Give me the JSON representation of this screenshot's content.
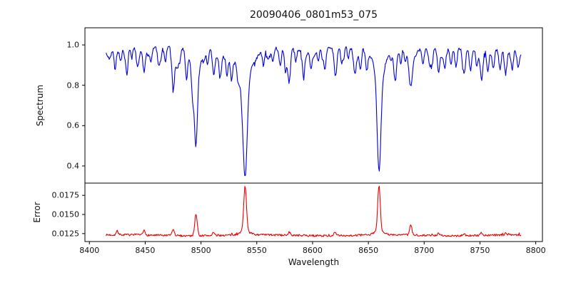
{
  "figure": {
    "title": "20090406_0801m53_075",
    "background": "#ffffff",
    "text_color": "#111111",
    "spine_color": "#000000"
  },
  "chart_data": {
    "type": "line",
    "title": "20090406_0801m53_075",
    "xlabel": "Wavelength",
    "xlim": [
      8396,
      8806
    ],
    "xticks": [
      8400,
      8450,
      8500,
      8550,
      8600,
      8650,
      8700,
      8750,
      8800
    ],
    "x_data_range": [
      8415,
      8787
    ],
    "sample_step": 0.55,
    "grid": false,
    "legend": "none",
    "panels": [
      {
        "name": "spectrum",
        "ylabel": "Spectrum",
        "line_color": "#0000dd",
        "ylim": [
          0.315,
          1.085
        ],
        "yticks": [
          0.4,
          0.6,
          0.8,
          1.0
        ],
        "ytick_labels": [
          "0.4",
          "0.6",
          "0.8",
          "1.0"
        ],
        "continuum_level": 0.983,
        "continuum_wave": [
          {
            "amp": 0.008,
            "period": 190,
            "phase": 0
          },
          {
            "amp": 0.005,
            "period": 83,
            "phase": 1.7
          }
        ],
        "major_absorption_lines": [
          {
            "c": 8495.5,
            "d": 0.38,
            "s": 1.35,
            "wd": 0.098,
            "ws": 5,
            "core_value": 0.505
          },
          {
            "c": 8539.5,
            "d": 0.5,
            "s": 1.9,
            "wd": 0.125,
            "ws": 7,
            "core_value": 0.358
          },
          {
            "c": 8659.5,
            "d": 0.47,
            "s": 1.7,
            "wd": 0.12,
            "ws": 6,
            "core_value": 0.392
          },
          {
            "c": 8688.0,
            "d": 0.185,
            "s": 1.7,
            "core_value": 0.785
          }
        ],
        "minor_absorption_lines": [
          [
            8423,
            0.1,
            1.0
          ],
          [
            8428,
            0.05,
            0.8
          ],
          [
            8433.5,
            0.075,
            0.9
          ],
          [
            8438,
            0.05,
            0.8
          ],
          [
            8443,
            0.06,
            0.9
          ],
          [
            8449,
            0.125,
            1.1
          ],
          [
            8455,
            0.065,
            0.9
          ],
          [
            8462,
            0.085,
            1.0
          ],
          [
            8468,
            0.08,
            0.9
          ],
          [
            8475,
            0.185,
            1.2
          ],
          [
            8481,
            0.06,
            0.9
          ],
          [
            8487,
            0.135,
            1.0
          ],
          [
            8492.5,
            0.09,
            0.9
          ],
          [
            8506,
            0.06,
            0.9
          ],
          [
            8511.5,
            0.13,
            1.1
          ],
          [
            8517,
            0.09,
            0.9
          ],
          [
            8523,
            0.075,
            0.9
          ],
          [
            8527.5,
            0.1,
            1.0
          ],
          [
            8533,
            0.06,
            0.9
          ],
          [
            8556,
            0.075,
            1.0
          ],
          [
            8560,
            0.05,
            0.8
          ],
          [
            8564.5,
            0.065,
            0.9
          ],
          [
            8571,
            0.085,
            1.0
          ],
          [
            8579,
            0.165,
            1.2
          ],
          [
            8585,
            0.06,
            0.9
          ],
          [
            8592,
            0.075,
            0.9
          ],
          [
            8598.5,
            0.095,
            1.0
          ],
          [
            8605,
            0.065,
            0.9
          ],
          [
            8611,
            0.1,
            1.0
          ],
          [
            8620.5,
            0.145,
            1.2
          ],
          [
            8626,
            0.075,
            0.9
          ],
          [
            8632,
            0.06,
            0.9
          ],
          [
            8638,
            0.07,
            0.9
          ],
          [
            8643,
            0.085,
            1.0
          ],
          [
            8648.5,
            0.105,
            1.0
          ],
          [
            8674,
            0.095,
            1.0
          ],
          [
            8679,
            0.075,
            0.9
          ],
          [
            8683,
            0.06,
            0.8
          ],
          [
            8699,
            0.07,
            0.9
          ],
          [
            8705,
            0.08,
            1.0
          ],
          [
            8713,
            0.11,
            1.1
          ],
          [
            8718.5,
            0.095,
            1.0
          ],
          [
            8724,
            0.075,
            0.9
          ],
          [
            8728.5,
            0.09,
            1.0
          ],
          [
            8736,
            0.115,
            1.1
          ],
          [
            8742,
            0.075,
            0.9
          ],
          [
            8747,
            0.065,
            0.9
          ],
          [
            8751.5,
            0.15,
            1.2
          ],
          [
            8757,
            0.1,
            1.0
          ],
          [
            8762,
            0.085,
            0.9
          ],
          [
            8768,
            0.095,
            1.0
          ],
          [
            8773,
            0.12,
            1.1
          ],
          [
            8779,
            0.095,
            1.0
          ],
          [
            8784,
            0.07,
            0.9
          ]
        ],
        "texture": {
          "seed": 42,
          "noise_amplitude": 0.008,
          "spike_prob": 0.05,
          "spike_depth": 0.025,
          "micro_line_count": 55,
          "micro_depth_range": [
            0.012,
            0.057
          ],
          "micro_sigma_range": [
            0.6,
            1.6
          ]
        },
        "value_cap": 1.025
      },
      {
        "name": "error",
        "ylabel": "Error",
        "line_color": "#ee0000",
        "ylim": [
          0.01146,
          0.0191
        ],
        "yticks": [
          0.0125,
          0.015,
          0.0175
        ],
        "ytick_labels": [
          "0.0125",
          "0.0150",
          "0.0175"
        ],
        "baseline": 0.01228,
        "peaks": [
          [
            8495.5,
            0.0029,
            1.1
          ],
          [
            8539.5,
            0.0058,
            1.25,
            0.0005,
            4
          ],
          [
            8659.5,
            0.006,
            1.15,
            0.0005,
            4
          ],
          [
            8688,
            0.0013,
            1.0
          ],
          [
            8475,
            0.0008,
            1.0
          ],
          [
            8449,
            0.0006,
            0.9
          ],
          [
            8425,
            0.0005,
            0.9
          ],
          [
            8511,
            0.0004,
            0.9
          ],
          [
            8579,
            0.00045,
            0.9
          ],
          [
            8620,
            0.0004,
            0.9
          ],
          [
            8713,
            0.0003,
            0.8
          ],
          [
            8736,
            0.0003,
            0.8
          ],
          [
            8751,
            0.00042,
            0.9
          ],
          [
            8773,
            0.0003,
            0.8
          ]
        ],
        "texture": {
          "seed": 7,
          "noise_amplitude": 0.00013,
          "bump_prob": 0.05,
          "bump_height": 0.0002
        }
      }
    ]
  }
}
